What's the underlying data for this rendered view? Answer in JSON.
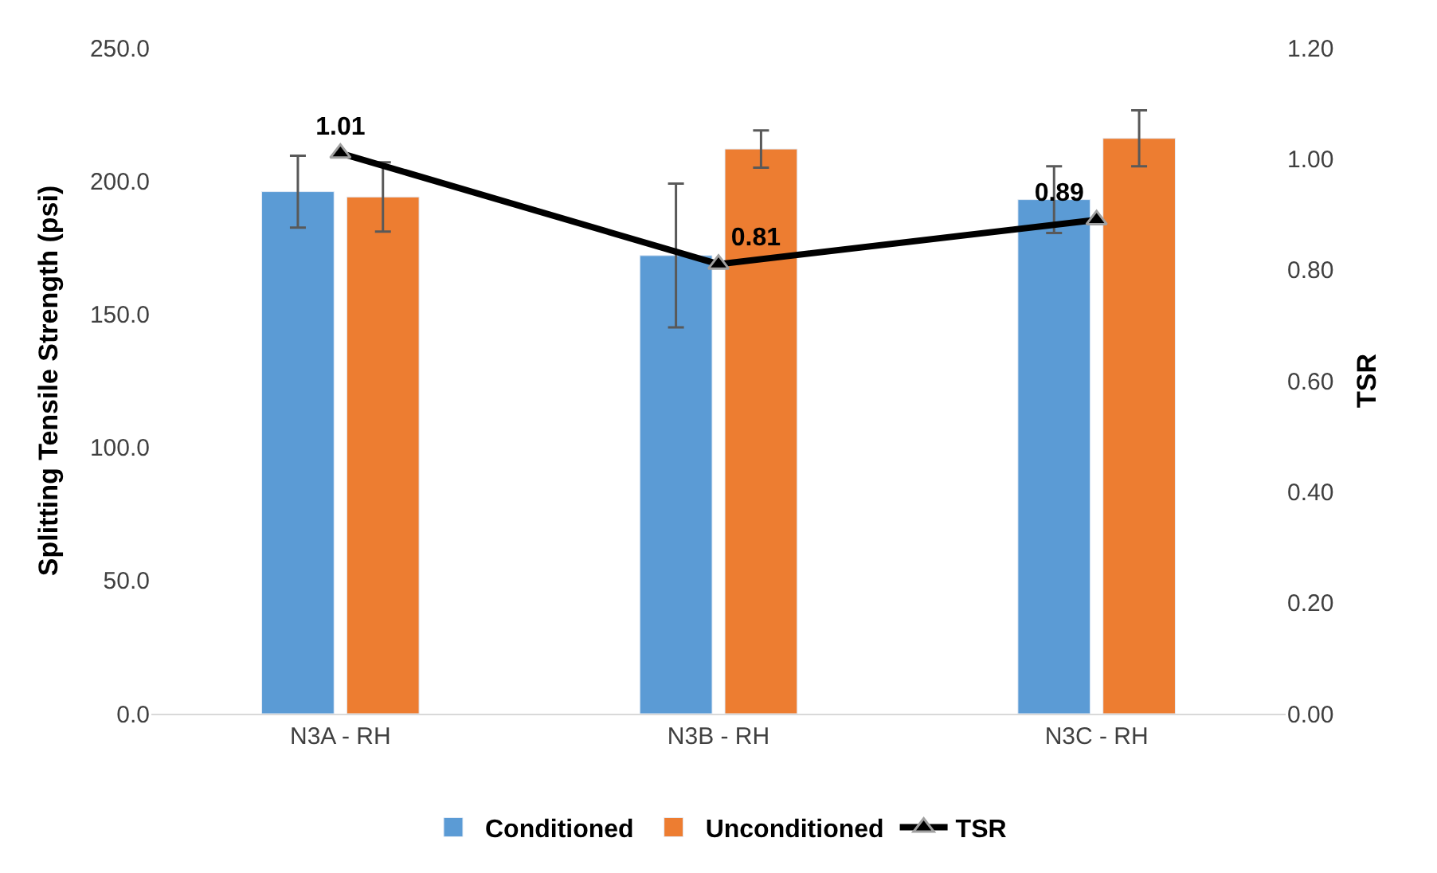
{
  "chart_data": {
    "type": "bar",
    "categories": [
      "N3A - RH",
      "N3B - RH",
      "N3C - RH"
    ],
    "ylabel": "Splitting Tensile Strength (psi)",
    "y2label": "TSR",
    "series": [
      {
        "name": "Conditioned",
        "color": "#5b9bd5",
        "values": [
          196,
          172,
          193
        ],
        "errors": [
          13.5,
          27,
          12.5
        ]
      },
      {
        "name": "Unconditioned",
        "color": "#ed7d31",
        "values": [
          194,
          212,
          216
        ],
        "errors": [
          13,
          7,
          10.5
        ]
      },
      {
        "name": "TSR",
        "type": "line",
        "axis": "y2",
        "color": "#000000",
        "marker": "triangle",
        "data_labels": true,
        "values": [
          1.01,
          0.81,
          0.89
        ]
      }
    ],
    "ylim": [
      0,
      250
    ],
    "yticks": [
      {
        "value": 0,
        "label": "0.0"
      },
      {
        "value": 50,
        "label": "50.0"
      },
      {
        "value": 100,
        "label": "100.0"
      },
      {
        "value": 150,
        "label": "150.0"
      },
      {
        "value": 200,
        "label": "200.0"
      },
      {
        "value": 250,
        "label": "250.0"
      }
    ],
    "y2lim": [
      0,
      1.2
    ],
    "y2ticks": [
      {
        "value": 0,
        "label": "0.00"
      },
      {
        "value": 0.2,
        "label": "0.20"
      },
      {
        "value": 0.4,
        "label": "0.40"
      },
      {
        "value": 0.6,
        "label": "0.60"
      },
      {
        "value": 0.8,
        "label": "0.80"
      },
      {
        "value": 1.0,
        "label": "1.00"
      },
      {
        "value": 1.2,
        "label": "1.20"
      }
    ],
    "legend": "bottom"
  }
}
